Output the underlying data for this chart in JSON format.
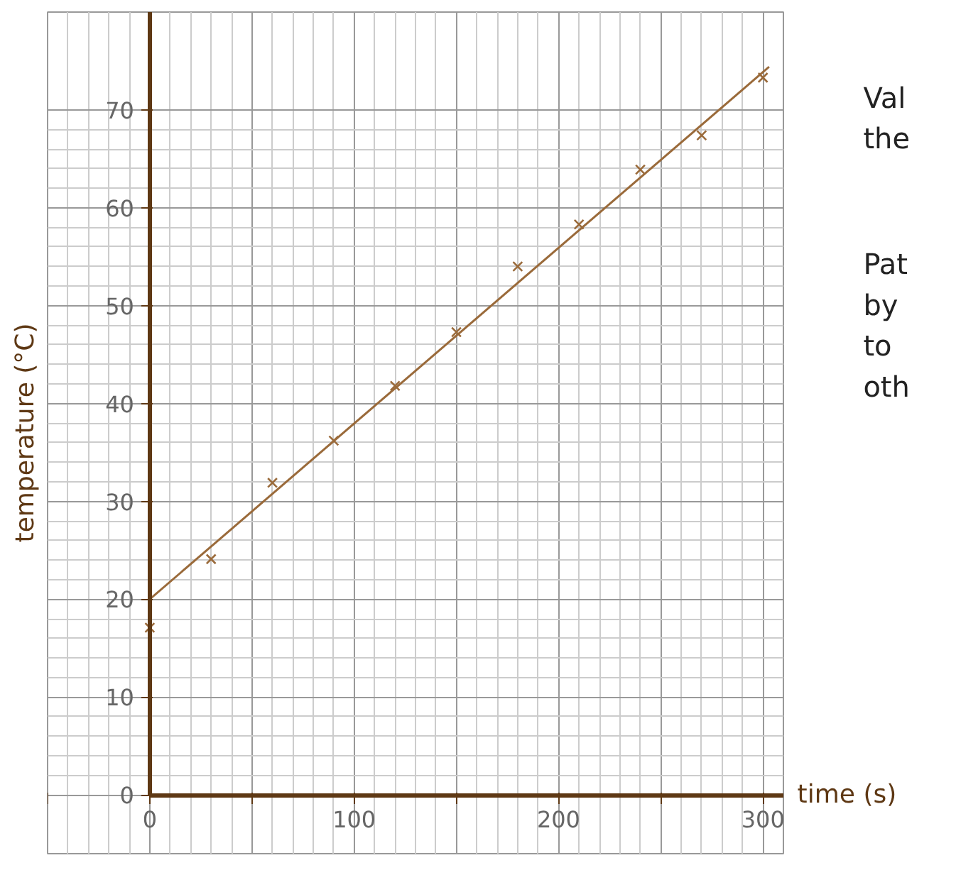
{
  "chart_data": {
    "type": "scatter",
    "xlabel": "time (s)",
    "ylabel": "temperature (°C)",
    "xlim": [
      -50,
      310
    ],
    "ylim": [
      -6,
      80
    ],
    "xticks": [
      {
        "value": -50,
        "label": null
      },
      0,
      {
        "value": 50,
        "label": null
      },
      100,
      {
        "value": 150,
        "label": null
      },
      200,
      {
        "value": 250,
        "label": null
      },
      300
    ],
    "yticks": [
      0,
      10,
      20,
      30,
      40,
      50,
      60,
      70
    ],
    "grid": true,
    "series": [
      {
        "color": "#9a6a3a",
        "marker": "cross",
        "x": [
          0,
          30,
          60,
          90,
          120,
          150,
          180,
          210,
          240,
          270,
          300
        ],
        "values": [
          17.1,
          24.1,
          31.9,
          36.2,
          41.8,
          47.3,
          54.0,
          58.3,
          63.9,
          67.4,
          73.3
        ]
      },
      {
        "type": "line",
        "color": "#9a6a3a",
        "x": [
          0,
          303
        ],
        "values": [
          20,
          74.4
        ]
      }
    ],
    "annotations": [
      "Val\nthe",
      "Pat\nby\nto\noth"
    ]
  }
}
